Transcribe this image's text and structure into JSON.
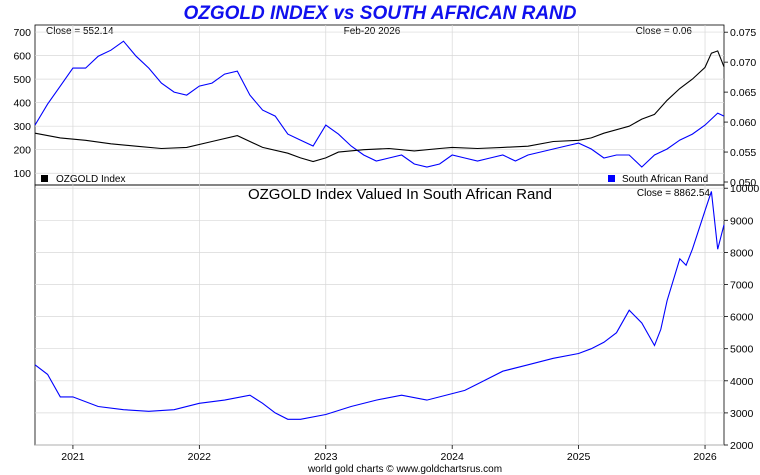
{
  "chart_data": [
    {
      "type": "line",
      "title": "OZGOLD INDEX vs SOUTH AFRICAN RAND",
      "date_label": "Feb-20  2026",
      "x_ticks": [
        "2021",
        "2022",
        "2023",
        "2024",
        "2025",
        "2026"
      ],
      "x_range": [
        2020.7,
        2026.15
      ],
      "left_axis": {
        "ticks": [
          "100",
          "200",
          "300",
          "400",
          "500",
          "600",
          "700"
        ],
        "ylim": [
          50,
          730
        ]
      },
      "right_axis": {
        "ticks": [
          "0.050",
          "0.055",
          "0.060",
          "0.065",
          "0.070",
          "0.075"
        ],
        "ylim": [
          0.0495,
          0.0762
        ]
      },
      "series": [
        {
          "name": "OZGOLD Index",
          "close_label": "Close = 552.14",
          "color": "#000000",
          "axis": "left",
          "x": [
            2020.7,
            2020.9,
            2021.1,
            2021.3,
            2021.5,
            2021.7,
            2021.9,
            2022.1,
            2022.3,
            2022.5,
            2022.7,
            2022.8,
            2022.9,
            2023.0,
            2023.1,
            2023.3,
            2023.5,
            2023.7,
            2023.9,
            2024.0,
            2024.2,
            2024.4,
            2024.6,
            2024.8,
            2025.0,
            2025.1,
            2025.2,
            2025.4,
            2025.5,
            2025.6,
            2025.7,
            2025.8,
            2025.9,
            2026.0,
            2026.05,
            2026.1,
            2026.15
          ],
          "values": [
            270,
            250,
            240,
            225,
            215,
            205,
            210,
            235,
            260,
            210,
            185,
            165,
            150,
            165,
            190,
            200,
            205,
            195,
            205,
            210,
            205,
            210,
            215,
            235,
            240,
            250,
            270,
            300,
            330,
            350,
            410,
            460,
            500,
            550,
            610,
            620,
            552.14
          ]
        },
        {
          "name": "South African Rand",
          "close_label": "Close = 0.06",
          "color": "#0000ff",
          "axis": "right",
          "x": [
            2020.7,
            2020.8,
            2020.9,
            2021.0,
            2021.1,
            2021.2,
            2021.3,
            2021.4,
            2021.5,
            2021.6,
            2021.7,
            2021.8,
            2021.9,
            2022.0,
            2022.1,
            2022.2,
            2022.3,
            2022.4,
            2022.5,
            2022.6,
            2022.7,
            2022.8,
            2022.9,
            2023.0,
            2023.1,
            2023.2,
            2023.3,
            2023.4,
            2023.5,
            2023.6,
            2023.7,
            2023.8,
            2023.9,
            2024.0,
            2024.1,
            2024.2,
            2024.3,
            2024.4,
            2024.5,
            2024.6,
            2024.7,
            2024.8,
            2024.9,
            2025.0,
            2025.1,
            2025.2,
            2025.3,
            2025.4,
            2025.5,
            2025.6,
            2025.7,
            2025.8,
            2025.9,
            2026.0,
            2026.1,
            2026.15
          ],
          "values": [
            0.0595,
            0.063,
            0.066,
            0.069,
            0.069,
            0.071,
            0.072,
            0.0735,
            0.071,
            0.069,
            0.0665,
            0.065,
            0.0645,
            0.066,
            0.0665,
            0.068,
            0.0685,
            0.0645,
            0.062,
            0.061,
            0.058,
            0.057,
            0.056,
            0.0595,
            0.058,
            0.056,
            0.0545,
            0.0535,
            0.054,
            0.0545,
            0.053,
            0.0525,
            0.053,
            0.0545,
            0.054,
            0.0535,
            0.054,
            0.0545,
            0.0535,
            0.0545,
            0.055,
            0.0555,
            0.056,
            0.0565,
            0.0555,
            0.054,
            0.0545,
            0.0545,
            0.0525,
            0.0545,
            0.0555,
            0.057,
            0.058,
            0.0595,
            0.0615,
            0.061
          ]
        }
      ],
      "legend": "bottom"
    },
    {
      "type": "line",
      "title": "OZGOLD Index Valued In South African Rand",
      "close_label": "Close = 8862.54",
      "x_ticks": [
        "2021",
        "2022",
        "2023",
        "2024",
        "2025",
        "2026"
      ],
      "x_range": [
        2020.7,
        2026.15
      ],
      "right_axis": {
        "ticks": [
          "2000",
          "3000",
          "4000",
          "5000",
          "6000",
          "7000",
          "8000",
          "9000",
          "10000"
        ],
        "ylim": [
          2000,
          10100
        ]
      },
      "series": [
        {
          "name": "OZGOLD Index Valued In South African Rand",
          "color": "#0000ff",
          "x": [
            2020.7,
            2020.8,
            2020.9,
            2021.0,
            2021.2,
            2021.4,
            2021.6,
            2021.8,
            2022.0,
            2022.2,
            2022.4,
            2022.5,
            2022.6,
            2022.7,
            2022.8,
            2023.0,
            2023.2,
            2023.4,
            2023.6,
            2023.8,
            2024.0,
            2024.1,
            2024.2,
            2024.4,
            2024.6,
            2024.8,
            2025.0,
            2025.1,
            2025.2,
            2025.3,
            2025.4,
            2025.5,
            2025.6,
            2025.65,
            2025.7,
            2025.8,
            2025.85,
            2025.9,
            2026.0,
            2026.05,
            2026.1,
            2026.15
          ],
          "values": [
            4500,
            4200,
            3500,
            3500,
            3200,
            3100,
            3050,
            3100,
            3300,
            3400,
            3550,
            3300,
            3000,
            2800,
            2800,
            2950,
            3200,
            3400,
            3550,
            3400,
            3600,
            3700,
            3900,
            4300,
            4500,
            4700,
            4850,
            5000,
            5200,
            5500,
            6200,
            5800,
            5100,
            5600,
            6500,
            7800,
            7600,
            8100,
            9300,
            9900,
            8100,
            8862.54
          ]
        }
      ]
    }
  ],
  "footer": "world gold charts © www.goldchartsrus.com"
}
